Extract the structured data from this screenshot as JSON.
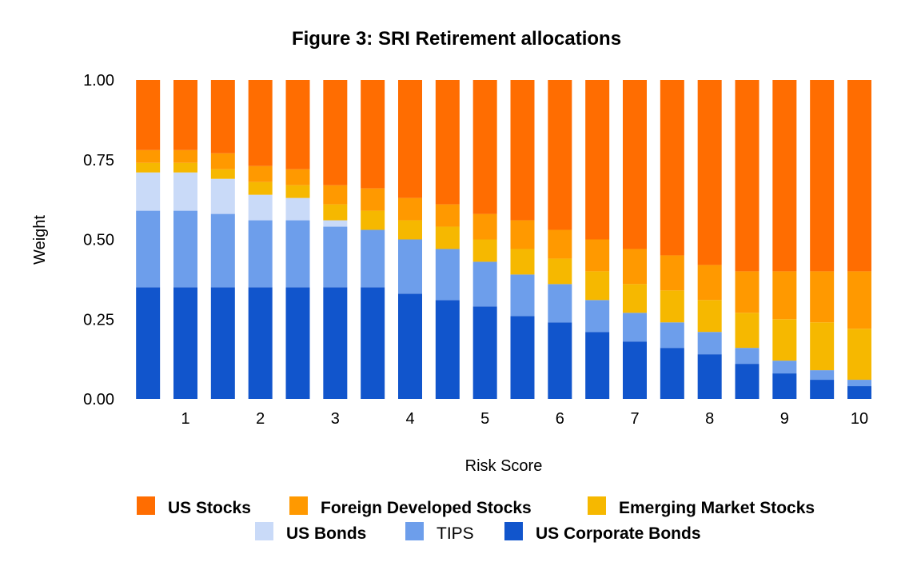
{
  "chart_data": {
    "type": "bar",
    "stacked": true,
    "title": "Figure 3: SRI Retirement allocations",
    "xlabel": "Risk Score",
    "ylabel": "Weight",
    "ylim": [
      0,
      1
    ],
    "y_ticks": [
      "0.00",
      "0.25",
      "0.50",
      "0.75",
      "1.00"
    ],
    "x_tick_labels": [
      "1",
      "2",
      "3",
      "4",
      "5",
      "6",
      "7",
      "8",
      "9",
      "10"
    ],
    "x": [
      0.5,
      1.0,
      1.5,
      2.0,
      2.5,
      3.0,
      3.5,
      4.0,
      4.5,
      5.0,
      5.5,
      6.0,
      6.5,
      7.0,
      7.5,
      8.0,
      8.5,
      9.0,
      9.5,
      10.0
    ],
    "legend_position": "bottom",
    "gridlines": false,
    "series": [
      {
        "name": "US Corporate Bonds",
        "color": "#1155cc",
        "values": [
          0.35,
          0.35,
          0.35,
          0.35,
          0.35,
          0.35,
          0.35,
          0.33,
          0.31,
          0.29,
          0.26,
          0.24,
          0.21,
          0.18,
          0.16,
          0.14,
          0.11,
          0.08,
          0.06,
          0.04
        ]
      },
      {
        "name": "TIPS",
        "color": "#6d9eeb",
        "values": [
          0.24,
          0.24,
          0.23,
          0.21,
          0.21,
          0.19,
          0.18,
          0.17,
          0.16,
          0.14,
          0.13,
          0.12,
          0.1,
          0.09,
          0.08,
          0.07,
          0.05,
          0.04,
          0.03,
          0.02
        ]
      },
      {
        "name": "US Bonds",
        "color": "#c9daf8",
        "values": [
          0.12,
          0.12,
          0.11,
          0.08,
          0.07,
          0.02,
          0,
          0,
          0,
          0,
          0,
          0,
          0,
          0,
          0,
          0,
          0,
          0,
          0,
          0
        ]
      },
      {
        "name": "Emerging Market Stocks",
        "color": "#f6b800",
        "values": [
          0.03,
          0.03,
          0.03,
          0.04,
          0.04,
          0.05,
          0.06,
          0.06,
          0.07,
          0.07,
          0.08,
          0.08,
          0.09,
          0.09,
          0.1,
          0.1,
          0.11,
          0.13,
          0.15,
          0.16
        ]
      },
      {
        "name": "Foreign Developed Stocks",
        "color": "#ff9900",
        "values": [
          0.04,
          0.04,
          0.05,
          0.05,
          0.05,
          0.06,
          0.07,
          0.07,
          0.07,
          0.08,
          0.09,
          0.09,
          0.1,
          0.11,
          0.11,
          0.11,
          0.13,
          0.15,
          0.16,
          0.18
        ]
      },
      {
        "name": "US Stocks",
        "color": "#ff6d01",
        "values": [
          0.22,
          0.22,
          0.23,
          0.27,
          0.28,
          0.33,
          0.34,
          0.37,
          0.39,
          0.42,
          0.44,
          0.47,
          0.5,
          0.53,
          0.55,
          0.58,
          0.6,
          0.6,
          0.6,
          0.6
        ]
      }
    ],
    "legend_order": [
      "US Stocks",
      "Foreign Developed Stocks",
      "Emerging Market Stocks",
      "US Bonds",
      "TIPS",
      "US Corporate Bonds"
    ]
  }
}
